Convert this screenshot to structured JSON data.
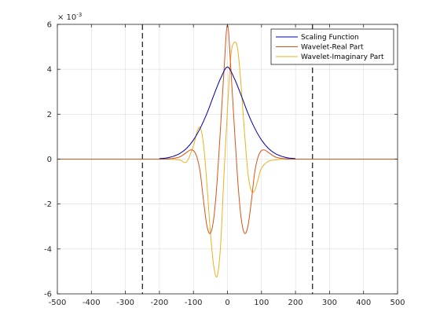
{
  "chart_data": {
    "type": "line",
    "title": "",
    "xlabel": "",
    "ylabel": "",
    "xlim": [
      -500,
      500
    ],
    "ylim": [
      -6,
      6
    ],
    "y_exponent_label": "× 10",
    "y_exponent_power": "-3",
    "x_ticks": [
      -500,
      -400,
      -300,
      -200,
      -100,
      0,
      100,
      200,
      300,
      400,
      500
    ],
    "x_tick_labels": [
      "-500",
      "-400",
      "-300",
      "-200",
      "-100",
      "0",
      "100",
      "200",
      "300",
      "400",
      "500"
    ],
    "y_ticks": [
      -6,
      -4,
      -2,
      0,
      2,
      4,
      6
    ],
    "y_tick_labels": [
      "-6",
      "-4",
      "-2",
      "0",
      "2",
      "4",
      "6"
    ],
    "grid": true,
    "legend_position": "top-right",
    "vertical_dashed_lines": [
      -250,
      250
    ],
    "series": [
      {
        "name": "Scaling Function",
        "color": "#0000ad",
        "x": [
          -200,
          -180,
          -160,
          -140,
          -120,
          -100,
          -80,
          -60,
          -40,
          -20,
          0,
          20,
          40,
          60,
          80,
          100,
          120,
          140,
          160,
          180,
          200
        ],
        "y": [
          0.02,
          0.05,
          0.12,
          0.25,
          0.48,
          0.85,
          1.38,
          2.05,
          2.85,
          3.6,
          4.1,
          3.6,
          2.85,
          2.05,
          1.38,
          0.85,
          0.48,
          0.25,
          0.12,
          0.05,
          0.02
        ]
      },
      {
        "name": "Wavelet-Real Part",
        "color": "#d95319",
        "x": [
          -500,
          -200,
          -180,
          -160,
          -140,
          -120,
          -110,
          -100,
          -90,
          -80,
          -70,
          -60,
          -50,
          -40,
          -30,
          -20,
          -10,
          0,
          10,
          20,
          30,
          40,
          50,
          60,
          70,
          80,
          90,
          100,
          110,
          120,
          140,
          160,
          180,
          200,
          500
        ],
        "y": [
          0,
          0,
          0.01,
          0.03,
          0.1,
          0.3,
          0.4,
          0.38,
          0.1,
          -0.6,
          -1.9,
          -3.0,
          -3.3,
          -2.6,
          -0.9,
          1.5,
          4.0,
          6.0,
          4.0,
          1.5,
          -0.9,
          -2.6,
          -3.3,
          -3.0,
          -1.9,
          -0.6,
          0.1,
          0.38,
          0.4,
          0.3,
          0.1,
          0.03,
          0.01,
          0,
          0
        ]
      },
      {
        "name": "Wavelet-Imaginary Part",
        "color": "#edb120",
        "x": [
          -500,
          -200,
          -180,
          -160,
          -140,
          -120,
          -100,
          -90,
          -80,
          -70,
          -60,
          -50,
          -40,
          -30,
          -20,
          -10,
          0,
          10,
          20,
          30,
          40,
          50,
          60,
          70,
          80,
          90,
          100,
          120,
          140,
          160,
          180,
          200,
          500
        ],
        "y": [
          0,
          0,
          0,
          -0.01,
          -0.04,
          -0.12,
          0.6,
          1.2,
          1.4,
          0.6,
          -1.2,
          -3.3,
          -4.8,
          -5.2,
          -3.8,
          -0.6,
          2.2,
          4.6,
          5.2,
          4.9,
          3.3,
          1.2,
          -0.6,
          -1.4,
          -1.4,
          -0.9,
          -0.4,
          -0.1,
          -0.04,
          -0.01,
          0,
          0,
          0
        ]
      }
    ]
  }
}
